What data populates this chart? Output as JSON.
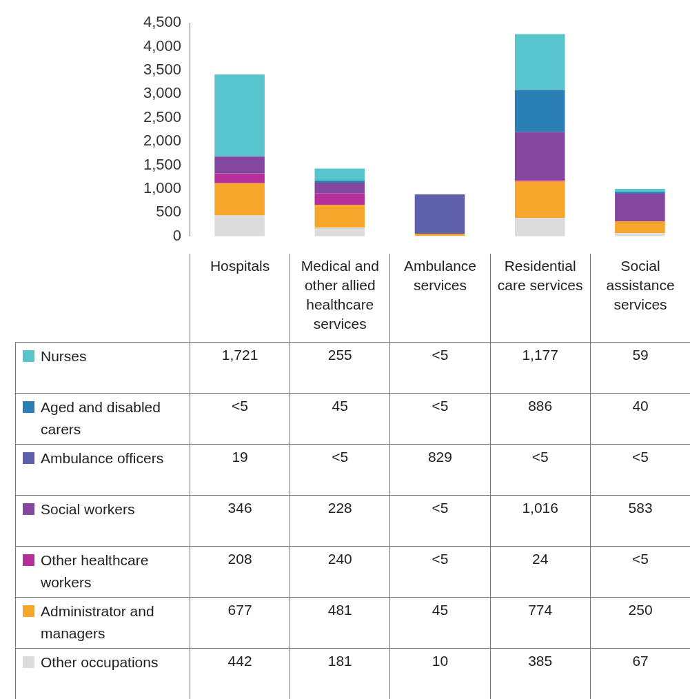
{
  "chart_data": {
    "type": "bar",
    "stacked": true,
    "categories": [
      "Hospitals",
      "Medical and other allied healthcare services",
      "Ambulance services",
      "Residential care services",
      "Social assistance services"
    ],
    "ylim": [
      0,
      4500
    ],
    "yticks": [
      0,
      {
        "value": 500,
        "label": "500"
      },
      {
        "value": 1000,
        "label": "1,000"
      },
      {
        "value": 1500,
        "label": "1,500"
      },
      {
        "value": 2000,
        "label": "2,000"
      },
      {
        "value": 2500,
        "label": "2,500"
      },
      {
        "value": 3000,
        "label": "3,000"
      },
      {
        "value": 3500,
        "label": "3,500"
      },
      {
        "value": 4000,
        "label": "4,000"
      },
      {
        "value": 4500,
        "label": "4,500"
      }
    ],
    "grid": false,
    "legend": "bottom",
    "series": [
      {
        "name": "Other occupations",
        "color": "#dcdcdc",
        "values": [
          442,
          181,
          10,
          385,
          67
        ],
        "value_labels": [
          "442",
          "181",
          "10",
          "385",
          "67"
        ]
      },
      {
        "name": "Administrator and managers",
        "color": "#f6a72b",
        "values": [
          677,
          481,
          45,
          774,
          250
        ],
        "value_labels": [
          "677",
          "481",
          "45",
          "774",
          "250"
        ]
      },
      {
        "name": "Other healthcare workers",
        "color": "#b5309a",
        "values": [
          208,
          240,
          null,
          24,
          null
        ],
        "value_labels": [
          "208",
          "240",
          "<5",
          "24",
          "<5"
        ]
      },
      {
        "name": "Social workers",
        "color": "#8447a0",
        "values": [
          346,
          228,
          null,
          1016,
          583
        ],
        "value_labels": [
          "346",
          "228",
          "<5",
          "1,016",
          "583"
        ]
      },
      {
        "name": "Ambulance officers",
        "color": "#5e60ac",
        "values": [
          19,
          null,
          829,
          null,
          null
        ],
        "value_labels": [
          "19",
          "<5",
          "829",
          "<5",
          "<5"
        ]
      },
      {
        "name": "Aged and disabled carers",
        "color": "#2a7fb5",
        "values": [
          null,
          45,
          null,
          886,
          40
        ],
        "value_labels": [
          "<5",
          "45",
          "<5",
          "886",
          "40"
        ]
      },
      {
        "name": "Nurses",
        "color": "#58c5cc",
        "values": [
          1721,
          255,
          null,
          1177,
          59
        ],
        "value_labels": [
          "1,721",
          "255",
          "<5",
          "1,177",
          "59"
        ]
      }
    ]
  }
}
